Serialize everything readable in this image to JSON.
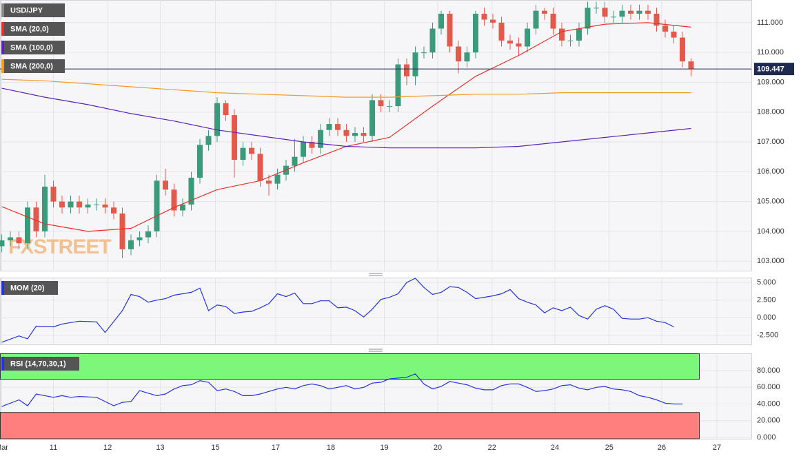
{
  "chart_data": [
    {
      "type": "candlestick",
      "title": "USD/JPY",
      "watermark": "FXSTREET",
      "up_color": "#3a9a7a",
      "down_color": "#e25a4c",
      "open": [
        103.5,
        103.7,
        103.8,
        103.6,
        104.8,
        104.0,
        105.5,
        105.0,
        104.8,
        105.0,
        104.8,
        104.9,
        104.9,
        104.8,
        104.6,
        103.4,
        103.7,
        103.8,
        104.0,
        105.7,
        105.4,
        104.7,
        104.9,
        105.8,
        106.9,
        107.2,
        108.3,
        107.9,
        106.4,
        106.8,
        106.6,
        105.7,
        105.6,
        105.9,
        106.2,
        106.5,
        107.0,
        106.8,
        107.4,
        107.6,
        107.4,
        107.2,
        107.3,
        107.2,
        108.4,
        108.2,
        108.2,
        109.6,
        109.2,
        110.0,
        110.0,
        110.8,
        111.3,
        110.2,
        109.7,
        110.0,
        111.3,
        111.1,
        111.0,
        110.4,
        110.3,
        110.2,
        110.8,
        111.4,
        111.3,
        110.8,
        110.4,
        110.4,
        110.8,
        111.5,
        111.5,
        111.2,
        111.2,
        111.4,
        111.3,
        111.4,
        111.3,
        110.9,
        110.7,
        110.5,
        109.7
      ],
      "high": [
        103.9,
        104.0,
        104.0,
        105.0,
        105.0,
        105.9,
        105.7,
        105.2,
        105.2,
        105.2,
        105.1,
        105.1,
        105.1,
        105.0,
        104.8,
        103.9,
        104.0,
        104.2,
        105.9,
        106.1,
        105.6,
        105.1,
        106.0,
        107.1,
        107.4,
        108.5,
        108.4,
        108.1,
        107.0,
        107.0,
        106.8,
        105.9,
        106.1,
        106.4,
        107.1,
        107.2,
        107.2,
        107.6,
        107.8,
        107.8,
        107.6,
        107.5,
        107.5,
        108.6,
        108.6,
        108.4,
        109.8,
        109.8,
        110.2,
        110.2,
        111.0,
        111.4,
        111.4,
        110.4,
        110.2,
        111.4,
        111.5,
        111.3,
        111.2,
        110.6,
        110.5,
        111.0,
        111.6,
        111.5,
        111.5,
        111.0,
        110.6,
        111.0,
        111.7,
        111.7,
        111.7,
        111.4,
        111.6,
        111.6,
        111.6,
        111.6,
        111.5,
        111.1,
        110.9,
        110.7,
        109.8
      ],
      "low": [
        103.3,
        103.5,
        103.4,
        103.4,
        103.8,
        103.8,
        104.8,
        104.6,
        104.6,
        104.6,
        104.6,
        104.7,
        104.6,
        104.4,
        103.1,
        103.2,
        103.5,
        103.6,
        103.8,
        105.2,
        104.5,
        104.5,
        104.7,
        105.6,
        106.7,
        107.0,
        107.7,
        105.8,
        106.2,
        106.4,
        105.5,
        105.2,
        105.4,
        105.7,
        106.0,
        106.3,
        106.6,
        106.6,
        107.2,
        107.2,
        107.0,
        107.0,
        107.0,
        107.0,
        108.0,
        108.0,
        108.0,
        108.9,
        108.9,
        109.8,
        109.8,
        110.6,
        110.0,
        109.3,
        109.5,
        109.8,
        110.9,
        110.8,
        110.2,
        110.1,
        109.9,
        110.0,
        110.6,
        111.1,
        110.6,
        110.2,
        110.2,
        110.2,
        110.6,
        111.3,
        111.0,
        111.0,
        111.0,
        111.1,
        111.1,
        111.1,
        110.7,
        110.5,
        110.3,
        109.5,
        109.2
      ],
      "close": [
        103.7,
        103.8,
        103.6,
        104.8,
        104.0,
        105.5,
        105.0,
        104.8,
        105.0,
        104.8,
        104.9,
        104.9,
        104.8,
        104.6,
        103.4,
        103.7,
        103.8,
        104.0,
        105.7,
        105.4,
        104.7,
        104.9,
        105.8,
        106.9,
        107.2,
        108.3,
        107.9,
        106.4,
        106.8,
        106.6,
        105.7,
        105.6,
        105.9,
        106.2,
        106.5,
        107.0,
        106.8,
        107.4,
        107.6,
        107.4,
        107.2,
        107.3,
        107.2,
        108.4,
        108.2,
        108.2,
        109.6,
        109.2,
        110.0,
        110.0,
        110.8,
        111.3,
        110.2,
        109.7,
        110.0,
        111.3,
        111.1,
        111.0,
        110.4,
        110.3,
        110.2,
        110.8,
        111.4,
        111.3,
        110.8,
        110.4,
        110.4,
        110.8,
        111.5,
        111.5,
        111.2,
        111.2,
        111.4,
        111.3,
        111.4,
        111.3,
        110.9,
        110.7,
        110.5,
        109.7,
        109.45
      ],
      "series": [
        {
          "name": "SMA (20,0)",
          "color": "#e8302a",
          "x": [
            0,
            5,
            10,
            15,
            20,
            25,
            30,
            35,
            40,
            45,
            50,
            55,
            60,
            65,
            70,
            75,
            80
          ],
          "values": [
            104.83,
            104.25,
            104.0,
            104.1,
            104.8,
            105.4,
            105.7,
            106.3,
            106.85,
            107.15,
            108.2,
            109.2,
            109.9,
            110.7,
            110.95,
            111.0,
            110.85
          ]
        },
        {
          "name": "SMA (100,0)",
          "color": "#5b21b6",
          "x": [
            0,
            5,
            10,
            15,
            20,
            25,
            30,
            35,
            40,
            45,
            50,
            55,
            60,
            65,
            70,
            75,
            80
          ],
          "values": [
            108.8,
            108.5,
            108.25,
            107.95,
            107.7,
            107.4,
            107.2,
            107.0,
            106.85,
            106.8,
            106.8,
            106.8,
            106.85,
            107.0,
            107.15,
            107.3,
            107.45
          ]
        },
        {
          "name": "SMA (200,0)",
          "color": "#f39a1e",
          "x": [
            0,
            5,
            10,
            15,
            20,
            25,
            30,
            35,
            40,
            45,
            50,
            55,
            60,
            65,
            70,
            75,
            80
          ],
          "values": [
            109.1,
            109.05,
            108.95,
            108.85,
            108.75,
            108.65,
            108.6,
            108.55,
            108.5,
            108.5,
            108.55,
            108.6,
            108.6,
            108.65,
            108.65,
            108.65,
            108.65
          ]
        }
      ],
      "last_price": 109.447,
      "ylim": [
        102.68,
        111.76
      ],
      "yticks": [
        {
          "value": 103,
          "label": "103.000"
        },
        {
          "value": 104,
          "label": "104.000"
        },
        {
          "value": 105,
          "label": "105.000"
        },
        {
          "value": 106,
          "label": "106.000"
        },
        {
          "value": 107,
          "label": "107.000"
        },
        {
          "value": 108,
          "label": "108.000"
        },
        {
          "value": 109,
          "label": "109.000"
        },
        {
          "value": 110,
          "label": "110.000"
        },
        {
          "value": 111,
          "label": "111.000"
        }
      ],
      "xlim": [
        -0.2,
        87
      ],
      "xticks": [
        {
          "value": 0,
          "label": "Mar"
        },
        {
          "value": 6,
          "label": "11"
        },
        {
          "value": 12.3,
          "label": "12"
        },
        {
          "value": 18.4,
          "label": "13"
        },
        {
          "value": 24.8,
          "label": "15"
        },
        {
          "value": 31.8,
          "label": "17"
        },
        {
          "value": 38.2,
          "label": "18"
        },
        {
          "value": 44.4,
          "label": "19"
        },
        {
          "value": 50.6,
          "label": "20"
        },
        {
          "value": 56.9,
          "label": "22"
        },
        {
          "value": 64.2,
          "label": "24"
        },
        {
          "value": 70.5,
          "label": "25"
        },
        {
          "value": 76.6,
          "label": "26"
        },
        {
          "value": 83,
          "label": "27"
        }
      ]
    },
    {
      "type": "line",
      "title": "MOM (20)",
      "series": [
        {
          "name": "MOM (20)",
          "color": "#2233dd",
          "x": [
            0,
            2,
            3,
            4,
            6,
            7,
            8,
            9,
            11,
            12,
            14,
            15,
            16,
            17,
            18,
            19,
            20,
            21,
            22,
            23,
            24,
            25,
            26,
            27,
            28,
            29,
            30,
            31,
            32,
            33,
            34,
            35,
            36,
            37,
            38,
            39,
            40,
            41,
            42,
            43,
            44,
            45,
            46,
            47,
            48,
            49,
            50,
            51,
            52,
            53,
            54,
            55,
            56,
            57,
            58,
            59,
            60,
            61,
            62,
            63,
            64,
            65,
            66,
            67,
            68,
            69,
            70,
            71,
            72,
            73,
            74,
            75,
            76,
            77,
            78
          ],
          "values": [
            -3.5,
            -2.6,
            -3.0,
            -1.2,
            -1.3,
            -0.9,
            -0.7,
            -0.5,
            -0.6,
            -2.1,
            1.0,
            3.3,
            3.0,
            2.2,
            2.5,
            2.7,
            3.2,
            3.4,
            3.6,
            4.2,
            1.0,
            1.8,
            1.6,
            0.6,
            0.8,
            0.9,
            1.4,
            2.0,
            3.4,
            3.0,
            3.5,
            2.0,
            2.0,
            2.4,
            2.4,
            1.4,
            1.5,
            1.0,
            0.1,
            1.2,
            2.6,
            2.9,
            3.4,
            5.0,
            5.6,
            4.3,
            3.3,
            3.6,
            4.4,
            4.3,
            3.6,
            2.7,
            2.9,
            3.1,
            3.4,
            4.0,
            2.7,
            2.2,
            1.8,
            0.7,
            1.4,
            1.0,
            1.5,
            0.3,
            -0.2,
            1.2,
            1.7,
            1.2,
            -0.1,
            -0.2,
            -0.2,
            0.0,
            -0.5,
            -0.7,
            -1.3
          ]
        }
      ],
      "ylim": [
        -3.8,
        5.7
      ],
      "yticks": [
        {
          "value": -2.5,
          "label": "-2.500"
        },
        {
          "value": 0,
          "label": "0.000"
        },
        {
          "value": 2.5,
          "label": "2.500"
        },
        {
          "value": 5,
          "label": "5.000"
        }
      ]
    },
    {
      "type": "line",
      "title": "RSI (14,70,30,1)",
      "overbought": 70,
      "oversold": 30,
      "series": [
        {
          "name": "RSI (14,70,30,1)",
          "color": "#2233dd",
          "x": [
            0,
            2,
            3,
            4,
            6,
            7,
            8,
            9,
            11,
            13,
            14,
            15,
            16,
            17,
            18,
            19,
            20,
            21,
            22,
            23,
            24,
            25,
            26,
            27,
            28,
            29,
            30,
            31,
            32,
            33,
            34,
            35,
            36,
            37,
            38,
            39,
            40,
            41,
            42,
            43,
            44,
            45,
            46,
            47,
            48,
            49,
            50,
            51,
            52,
            53,
            54,
            55,
            56,
            57,
            58,
            59,
            60,
            61,
            62,
            63,
            64,
            65,
            66,
            67,
            68,
            69,
            70,
            71,
            72,
            73,
            74,
            75,
            76,
            77,
            78,
            79
          ],
          "values": [
            37,
            45,
            38,
            52,
            48,
            50,
            48,
            49,
            48,
            38,
            42,
            43,
            56,
            53,
            50,
            52,
            58,
            62,
            63,
            68,
            66,
            56,
            58,
            55,
            50,
            50,
            52,
            55,
            58,
            60,
            58,
            62,
            64,
            62,
            58,
            60,
            62,
            58,
            60,
            65,
            66,
            70,
            71,
            72,
            76,
            64,
            58,
            61,
            67,
            65,
            63,
            59,
            57,
            57,
            62,
            64,
            64,
            60,
            55,
            56,
            58,
            62,
            63,
            59,
            57,
            60,
            61,
            58,
            57,
            55,
            50,
            48,
            45,
            41,
            40,
            40
          ]
        }
      ],
      "ylim": [
        -1.6,
        100.6
      ],
      "yticks": [
        {
          "value": 0,
          "label": "0.000"
        },
        {
          "value": 20,
          "label": "20.000"
        },
        {
          "value": 40,
          "label": "40.000"
        },
        {
          "value": 60,
          "label": "60.000"
        },
        {
          "value": 80,
          "label": "80.000"
        }
      ]
    }
  ]
}
